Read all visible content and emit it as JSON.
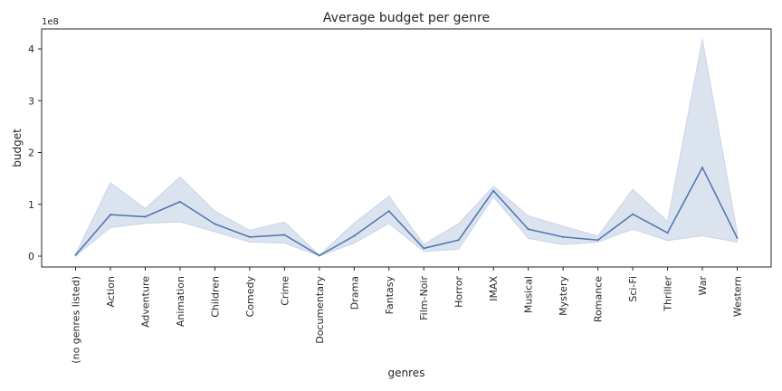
{
  "chart_data": {
    "type": "line",
    "title": "Average budget per genre",
    "xlabel": "genres",
    "ylabel": "budget",
    "y_offset_label": "1e8",
    "ylim": [
      0,
      4.2
    ],
    "yticks": [
      0,
      1,
      2,
      3,
      4
    ],
    "grid": false,
    "categories": [
      "(no genres listed)",
      "Action",
      "Adventure",
      "Animation",
      "Children",
      "Comedy",
      "Crime",
      "Documentary",
      "Drama",
      "Fantasy",
      "Film-Noir",
      "Horror",
      "IMAX",
      "Musical",
      "Mystery",
      "Romance",
      "Sci-Fi",
      "Thriller",
      "War",
      "Western"
    ],
    "series": [
      {
        "values": [
          0.02,
          0.8,
          0.76,
          1.05,
          0.62,
          0.37,
          0.41,
          0.01,
          0.39,
          0.87,
          0.15,
          0.31,
          1.26,
          0.52,
          0.37,
          0.31,
          0.81,
          0.45,
          1.71,
          0.35
        ],
        "ci_lower": [
          0.0,
          0.55,
          0.63,
          0.66,
          0.47,
          0.27,
          0.25,
          0.0,
          0.25,
          0.63,
          0.09,
          0.13,
          1.14,
          0.34,
          0.22,
          0.27,
          0.52,
          0.3,
          0.39,
          0.27
        ],
        "ci_upper": [
          0.04,
          1.42,
          0.92,
          1.53,
          0.87,
          0.5,
          0.66,
          0.02,
          0.64,
          1.16,
          0.23,
          0.63,
          1.35,
          0.78,
          0.58,
          0.39,
          1.29,
          0.67,
          4.19,
          0.46
        ],
        "color": "#4c72b0",
        "fill_color": "#4c72b0"
      }
    ]
  }
}
